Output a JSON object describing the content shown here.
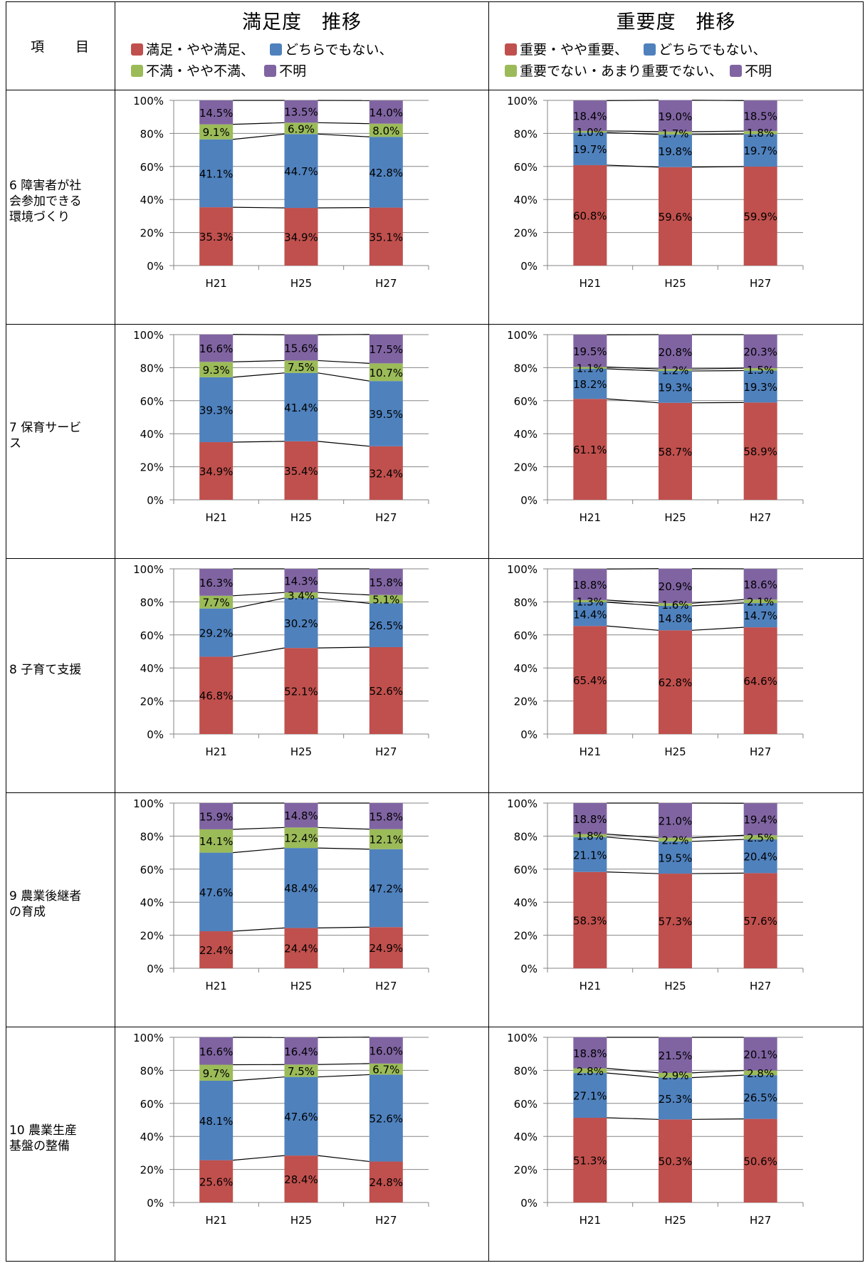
{
  "header": {
    "item_col_a": "項",
    "item_col_b": "目",
    "left_title": "満足度　推移",
    "right_title": "重要度　推移",
    "left_legend": [
      {
        "label": "満足・やや満足、",
        "color": "#c0504d"
      },
      {
        "label": "どちらでもない、",
        "color": "#4f81bd"
      },
      {
        "label": "不満・やや不満、",
        "color": "#9bbb59"
      },
      {
        "label": "不明",
        "color": "#8064a2"
      }
    ],
    "right_legend": [
      {
        "label": "重要・やや重要、",
        "color": "#c0504d"
      },
      {
        "label": "どちらでもない、",
        "color": "#4f81bd"
      },
      {
        "label": "重要でない・あまり重要でない、",
        "color": "#9bbb59"
      },
      {
        "label": "不明",
        "color": "#8064a2"
      }
    ]
  },
  "colors": {
    "s1": "#c0504d",
    "s2": "#4f81bd",
    "s3": "#9bbb59",
    "s4": "#8064a2"
  },
  "y_ticks": [
    "0%",
    "20%",
    "40%",
    "60%",
    "80%",
    "100%"
  ],
  "rows": [
    {
      "label_lines": [
        "6 障害者が社",
        "会参加できる",
        "環境づくり"
      ]
    },
    {
      "label_lines": [
        "7 保育サービ",
        "ス"
      ]
    },
    {
      "label_lines": [
        "8 子育て支援"
      ]
    },
    {
      "label_lines": [
        "9 農業後継者",
        "の育成"
      ]
    },
    {
      "label_lines": [
        "10 農業生産",
        "基盤の整備"
      ]
    }
  ],
  "chart_data": [
    {
      "type": "bar",
      "stacked": true,
      "ylim": [
        0,
        100
      ],
      "categories": [
        "H21",
        "H25",
        "H27"
      ],
      "series": [
        {
          "name": "満足・やや満足",
          "values": [
            35.3,
            34.9,
            35.1
          ],
          "labels": [
            "35.3%",
            "34.9%",
            "35.1%"
          ]
        },
        {
          "name": "どちらでもない",
          "values": [
            41.1,
            44.7,
            42.8
          ],
          "labels": [
            "41.1%",
            "44.7%",
            "42.8%"
          ]
        },
        {
          "name": "不満・やや不満",
          "values": [
            9.1,
            6.9,
            8.0
          ],
          "labels": [
            "9.1%",
            "6.9%",
            "8.0%"
          ]
        },
        {
          "name": "不明",
          "values": [
            14.5,
            13.5,
            14.0
          ],
          "labels": [
            "14.5%",
            "13.5%",
            "14.0%"
          ]
        }
      ]
    },
    {
      "type": "bar",
      "stacked": true,
      "ylim": [
        0,
        100
      ],
      "categories": [
        "H21",
        "H25",
        "H27"
      ],
      "series": [
        {
          "name": "重要・やや重要",
          "values": [
            60.8,
            59.6,
            59.9
          ],
          "labels": [
            "60.8%",
            "59.6%",
            "59.9%"
          ]
        },
        {
          "name": "どちらでもない",
          "values": [
            19.7,
            19.8,
            19.7
          ],
          "labels": [
            "19.7%",
            "19.8%",
            "19.7%"
          ]
        },
        {
          "name": "重要でない・あまり重要でない",
          "values": [
            1.0,
            1.7,
            1.8
          ],
          "labels": [
            "1.0%",
            "1.7%",
            "1.8%"
          ]
        },
        {
          "name": "不明",
          "values": [
            18.4,
            19.0,
            18.5
          ],
          "labels": [
            "18.4%",
            "19.0%",
            "18.5%"
          ]
        }
      ]
    },
    {
      "type": "bar",
      "stacked": true,
      "ylim": [
        0,
        100
      ],
      "categories": [
        "H21",
        "H25",
        "H27"
      ],
      "series": [
        {
          "name": "満足・やや満足",
          "values": [
            34.9,
            35.4,
            32.4
          ],
          "labels": [
            "34.9%",
            "35.4%",
            "32.4%"
          ]
        },
        {
          "name": "どちらでもない",
          "values": [
            39.3,
            41.4,
            39.5
          ],
          "labels": [
            "39.3%",
            "41.4%",
            "39.5%"
          ]
        },
        {
          "name": "不満・やや不満",
          "values": [
            9.3,
            7.5,
            10.7
          ],
          "labels": [
            "9.3%",
            "7.5%",
            "10.7%"
          ]
        },
        {
          "name": "不明",
          "values": [
            16.6,
            15.6,
            17.5
          ],
          "labels": [
            "16.6%",
            "15.6%",
            "17.5%"
          ]
        }
      ]
    },
    {
      "type": "bar",
      "stacked": true,
      "ylim": [
        0,
        100
      ],
      "categories": [
        "H21",
        "H25",
        "H27"
      ],
      "series": [
        {
          "name": "重要・やや重要",
          "values": [
            61.1,
            58.7,
            58.9
          ],
          "labels": [
            "61.1%",
            "58.7%",
            "58.9%"
          ]
        },
        {
          "name": "どちらでもない",
          "values": [
            18.2,
            19.3,
            19.3
          ],
          "labels": [
            "18.2%",
            "19.3%",
            "19.3%"
          ]
        },
        {
          "name": "重要でない・あまり重要でない",
          "values": [
            1.1,
            1.2,
            1.5
          ],
          "labels": [
            "1.1%",
            "1.2%",
            "1.5%"
          ]
        },
        {
          "name": "不明",
          "values": [
            19.5,
            20.8,
            20.3
          ],
          "labels": [
            "19.5%",
            "20.8%",
            "20.3%"
          ]
        }
      ]
    },
    {
      "type": "bar",
      "stacked": true,
      "ylim": [
        0,
        100
      ],
      "categories": [
        "H21",
        "H25",
        "H27"
      ],
      "series": [
        {
          "name": "満足・やや満足",
          "values": [
            46.8,
            52.1,
            52.6
          ],
          "labels": [
            "46.8%",
            "52.1%",
            "52.6%"
          ]
        },
        {
          "name": "どちらでもない",
          "values": [
            29.2,
            30.2,
            26.5
          ],
          "labels": [
            "29.2%",
            "30.2%",
            "26.5%"
          ]
        },
        {
          "name": "不満・やや不満",
          "values": [
            7.7,
            3.4,
            5.1
          ],
          "labels": [
            "7.7%",
            "3.4%",
            "5.1%"
          ]
        },
        {
          "name": "不明",
          "values": [
            16.3,
            14.3,
            15.8
          ],
          "labels": [
            "16.3%",
            "14.3%",
            "15.8%"
          ]
        }
      ]
    },
    {
      "type": "bar",
      "stacked": true,
      "ylim": [
        0,
        100
      ],
      "categories": [
        "H21",
        "H25",
        "H27"
      ],
      "series": [
        {
          "name": "重要・やや重要",
          "values": [
            65.4,
            62.8,
            64.6
          ],
          "labels": [
            "65.4%",
            "62.8%",
            "64.6%"
          ]
        },
        {
          "name": "どちらでもない",
          "values": [
            14.4,
            14.8,
            14.7
          ],
          "labels": [
            "14.4%",
            "14.8%",
            "14.7%"
          ]
        },
        {
          "name": "重要でない・あまり重要でない",
          "values": [
            1.3,
            1.6,
            2.1
          ],
          "labels": [
            "1.3%",
            "1.6%",
            "2.1%"
          ]
        },
        {
          "name": "不明",
          "values": [
            18.8,
            20.9,
            18.6
          ],
          "labels": [
            "18.8%",
            "20.9%",
            "18.6%"
          ]
        }
      ]
    },
    {
      "type": "bar",
      "stacked": true,
      "ylim": [
        0,
        100
      ],
      "categories": [
        "H21",
        "H25",
        "H27"
      ],
      "series": [
        {
          "name": "満足・やや満足",
          "values": [
            22.4,
            24.4,
            24.9
          ],
          "labels": [
            "22.4%",
            "24.4%",
            "24.9%"
          ]
        },
        {
          "name": "どちらでもない",
          "values": [
            47.6,
            48.4,
            47.2
          ],
          "labels": [
            "47.6%",
            "48.4%",
            "47.2%"
          ]
        },
        {
          "name": "不満・やや不満",
          "values": [
            14.1,
            12.4,
            12.1
          ],
          "labels": [
            "14.1%",
            "12.4%",
            "12.1%"
          ]
        },
        {
          "name": "不明",
          "values": [
            15.9,
            14.8,
            15.8
          ],
          "labels": [
            "15.9%",
            "14.8%",
            "15.8%"
          ]
        }
      ]
    },
    {
      "type": "bar",
      "stacked": true,
      "ylim": [
        0,
        100
      ],
      "categories": [
        "H21",
        "H25",
        "H27"
      ],
      "series": [
        {
          "name": "重要・やや重要",
          "values": [
            58.3,
            57.3,
            57.6
          ],
          "labels": [
            "58.3%",
            "57.3%",
            "57.6%"
          ]
        },
        {
          "name": "どちらでもない",
          "values": [
            21.1,
            19.5,
            20.4
          ],
          "labels": [
            "21.1%",
            "19.5%",
            "20.4%"
          ]
        },
        {
          "name": "重要でない・あまり重要でない",
          "values": [
            1.8,
            2.2,
            2.5
          ],
          "labels": [
            "1.8%",
            "2.2%",
            "2.5%"
          ]
        },
        {
          "name": "不明",
          "values": [
            18.8,
            21.0,
            19.4
          ],
          "labels": [
            "18.8%",
            "21.0%",
            "19.4%"
          ]
        }
      ]
    },
    {
      "type": "bar",
      "stacked": true,
      "ylim": [
        0,
        100
      ],
      "categories": [
        "H21",
        "H25",
        "H27"
      ],
      "series": [
        {
          "name": "満足・やや満足",
          "values": [
            25.6,
            28.4,
            24.8
          ],
          "labels": [
            "25.6%",
            "28.4%",
            "24.8%"
          ]
        },
        {
          "name": "どちらでもない",
          "values": [
            48.1,
            47.6,
            52.6
          ],
          "labels": [
            "48.1%",
            "47.6%",
            "52.6%"
          ]
        },
        {
          "name": "不満・やや不満",
          "values": [
            9.7,
            7.5,
            6.7
          ],
          "labels": [
            "9.7%",
            "7.5%",
            "6.7%"
          ]
        },
        {
          "name": "不明",
          "values": [
            16.6,
            16.4,
            16.0
          ],
          "labels": [
            "16.6%",
            "16.4%",
            "16.0%"
          ]
        }
      ]
    },
    {
      "type": "bar",
      "stacked": true,
      "ylim": [
        0,
        100
      ],
      "categories": [
        "H21",
        "H25",
        "H27"
      ],
      "series": [
        {
          "name": "重要・やや重要",
          "values": [
            51.3,
            50.3,
            50.6
          ],
          "labels": [
            "51.3%",
            "50.3%",
            "50.6%"
          ]
        },
        {
          "name": "どちらでもない",
          "values": [
            27.1,
            25.3,
            26.5
          ],
          "labels": [
            "27.1%",
            "25.3%",
            "26.5%"
          ]
        },
        {
          "name": "重要でない・あまり重要でない",
          "values": [
            2.8,
            2.9,
            2.8
          ],
          "labels": [
            "2.8%",
            "2.9%",
            "2.8%"
          ]
        },
        {
          "name": "不明",
          "values": [
            18.8,
            21.5,
            20.1
          ],
          "labels": [
            "18.8%",
            "21.5%",
            "20.1%"
          ]
        }
      ]
    }
  ]
}
